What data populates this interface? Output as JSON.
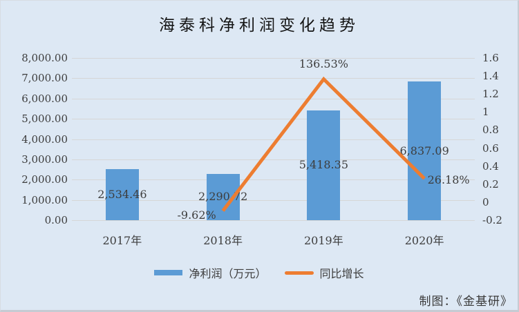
{
  "title": "海泰科净利润变化趋势",
  "attribution": "制图：《金基研》",
  "colors": {
    "background": "#dde8f4",
    "gridline": "#d6d6d6",
    "bar": "#5b9bd5",
    "line": "#ed7d31",
    "text": "#3d3d3d",
    "title_text": "#141414"
  },
  "chart_data": {
    "type": "bar",
    "subtype": "combo-bar-line",
    "title": "海泰科净利润变化趋势",
    "categories": [
      "2017年",
      "2018年",
      "2019年",
      "2020年"
    ],
    "series": [
      {
        "name": "净利润（万元）",
        "type": "bar",
        "axis": "left",
        "color": "#5b9bd5",
        "values": [
          2534.46,
          2290.72,
          5418.35,
          6837.09
        ],
        "labels": [
          "2,534.46",
          "2,290.72",
          "5,418.35",
          "6,837.09"
        ]
      },
      {
        "name": "同比增长",
        "type": "line",
        "axis": "right",
        "color": "#ed7d31",
        "values": [
          null,
          -0.0962,
          1.3653,
          0.2618
        ],
        "labels": [
          null,
          "-9.62%",
          "136.53%",
          "26.18%"
        ],
        "label_positions": [
          null,
          "below-left",
          "above",
          "right"
        ]
      }
    ],
    "left_axis": {
      "min": 0,
      "max": 8000,
      "ticks": [
        "8,000.00",
        "7,000.00",
        "6,000.00",
        "5,000.00",
        "4,000.00",
        "3,000.00",
        "2,000.00",
        "1,000.00",
        "0.00"
      ]
    },
    "right_axis": {
      "min": -0.2,
      "max": 1.6,
      "ticks": [
        "1.6",
        "1.4",
        "1.2",
        "1",
        "0.8",
        "0.6",
        "0.4",
        "0.2",
        "0",
        "-0.2"
      ]
    },
    "grid": true,
    "legend_position": "bottom"
  }
}
